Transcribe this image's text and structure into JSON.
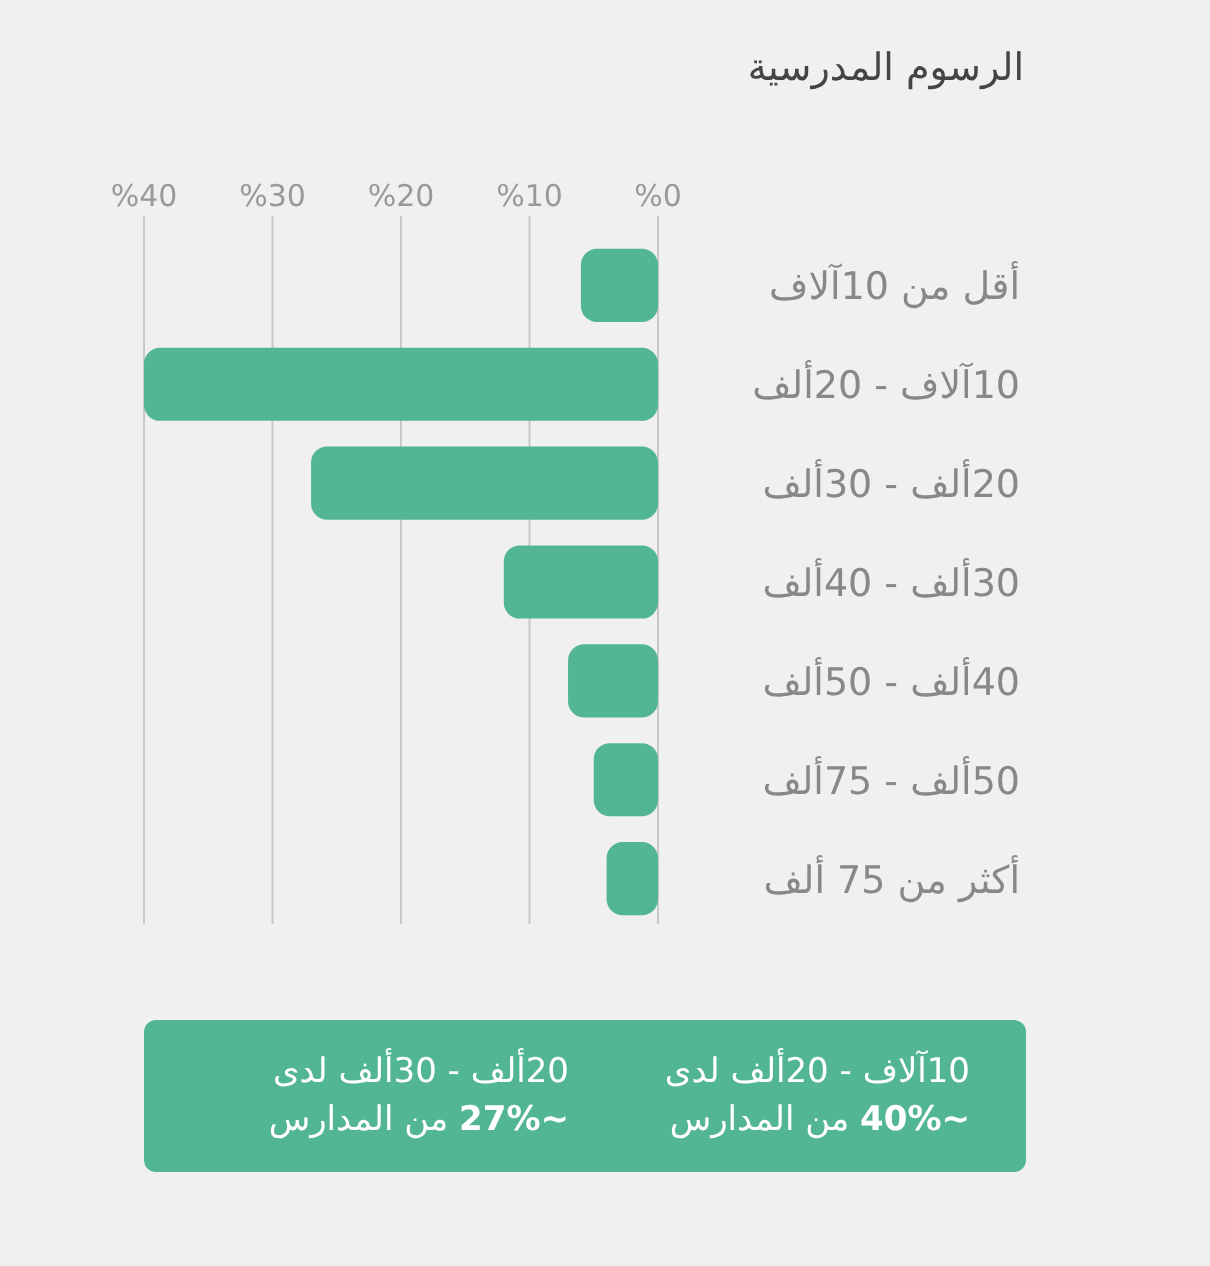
{
  "chart_data": {
    "type": "bar",
    "orientation": "horizontal",
    "title": "الرسوم المدرسية",
    "categories": [
      "أقل من 10آلاف",
      "10آلاف - 20ألف",
      "20ألف - 30ألف",
      "30ألف - 40ألف",
      "40ألف - 50ألف",
      "50ألف - 75ألف",
      "أكثر من 75 ألف"
    ],
    "values": [
      6,
      40,
      27,
      12,
      7,
      5,
      4
    ],
    "color": "#52b596",
    "xlim": [
      40,
      0
    ],
    "xticks": [
      {
        "value": 40,
        "label": "%40"
      },
      {
        "value": 30,
        "label": "%30"
      },
      {
        "value": 20,
        "label": "%20"
      },
      {
        "value": 10,
        "label": "%10"
      },
      {
        "value": 0,
        "label": "%0"
      }
    ],
    "grid": "x",
    "annotations": [
      "10آلاف - 20ألف لدى\n~40% من المدارس",
      "20ألف - 30ألف لدى\n~27% من المدارس"
    ]
  }
}
